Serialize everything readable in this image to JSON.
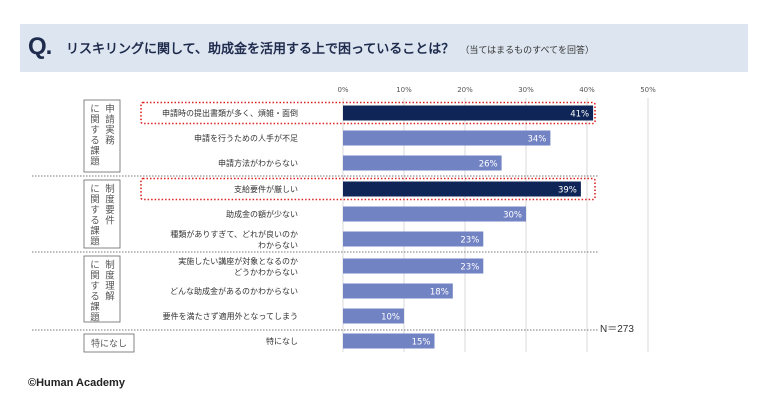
{
  "header": {
    "q_mark": "Q.",
    "question": "リスキリングに関して、助成金を活用する上で困っていることは？",
    "note": "（当てはまるものすべてを回答）"
  },
  "footer": {
    "credit": "©Human Academy"
  },
  "n_label": "N＝273",
  "colors": {
    "highlight": "#0f2557",
    "normal": "#7283c4",
    "header_bg": "#dde6f0",
    "red_dots": "#dd2222"
  },
  "chart_data": {
    "type": "bar",
    "orientation": "horizontal",
    "xlim": [
      0,
      50
    ],
    "x_ticks": [
      "0%",
      "10%",
      "20%",
      "30%",
      "40%",
      "50%"
    ],
    "groups": [
      {
        "label": "申請実務に関する課題",
        "items": [
          0,
          1,
          2
        ]
      },
      {
        "label": "制度要件に関する課題",
        "items": [
          3,
          4,
          5
        ]
      },
      {
        "label": "制度理解に関する課題",
        "items": [
          6,
          7,
          8
        ]
      },
      {
        "label": "特になし",
        "items": [
          9
        ]
      }
    ],
    "categories": [
      [
        "申請時の提出書類が多く、煩雑・面倒"
      ],
      [
        "申請を行うための人手が不足"
      ],
      [
        "申請方法がわからない"
      ],
      [
        "支給要件が厳しい"
      ],
      [
        "助成金の額が少ない"
      ],
      [
        "種類がありすぎて、どれが良いのか",
        "わからない"
      ],
      [
        "実施したい講座が対象となるのか",
        "どうかわからない"
      ],
      [
        "どんな助成金があるのかわからない"
      ],
      [
        "要件を満たさず適用外となってしまう"
      ],
      [
        "特になし"
      ]
    ],
    "values": [
      41,
      34,
      26,
      39,
      30,
      23,
      23,
      18,
      10,
      15
    ],
    "value_labels": [
      "41%",
      "34%",
      "26%",
      "39%",
      "30%",
      "23%",
      "23%",
      "18%",
      "10%",
      "15%"
    ],
    "highlighted": [
      0,
      3
    ]
  }
}
